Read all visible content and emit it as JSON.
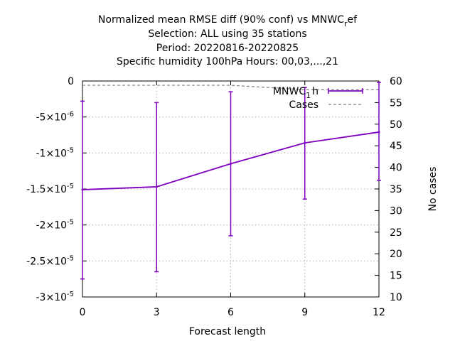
{
  "chart_data": {
    "type": "line",
    "title_lines": [
      "Normalized mean RMSE diff (90% conf) vs MNWC",
      "Selection: ALL using    35 stations",
      "Period: 20220816-20220825",
      "Specific humidity 100hPa   Hours:  00,03,...,21"
    ],
    "title_subscript": "r",
    "title_suffix": "ef",
    "xlabel": "Forecast length",
    "y2label": "No cases",
    "x": [
      0,
      3,
      6,
      9,
      12
    ],
    "xlim": [
      0,
      12
    ],
    "ylim": [
      -3e-05,
      0
    ],
    "y2lim": [
      10,
      60
    ],
    "x_ticks": [
      "0",
      "3",
      "6",
      "9",
      "12"
    ],
    "y_ticks": [
      {
        "value": 0,
        "base": "0",
        "exp": ""
      },
      {
        "value": -5e-06,
        "base": "-5×10",
        "exp": "-6"
      },
      {
        "value": -1e-05,
        "base": "-1×10",
        "exp": "-5"
      },
      {
        "value": -1.5e-05,
        "base": "-1.5×10",
        "exp": "-5"
      },
      {
        "value": -2e-05,
        "base": "-2×10",
        "exp": "-5"
      },
      {
        "value": -2.5e-05,
        "base": "-2.5×10",
        "exp": "-5"
      },
      {
        "value": -3e-05,
        "base": "-3×10",
        "exp": "-5"
      }
    ],
    "y2_ticks": [
      "10",
      "15",
      "20",
      "25",
      "30",
      "35",
      "40",
      "45",
      "50",
      "55",
      "60"
    ],
    "grid": true,
    "legend_position": "top-right",
    "series": [
      {
        "name": "MNWC_1h",
        "legend_base": "MNWC",
        "legend_sub": "1",
        "legend_suffix": "h",
        "axis": "y1",
        "color": "#7f00bf",
        "style": "solid with error bars",
        "values": [
          -1.51e-05,
          -1.47e-05,
          -1.15e-05,
          -8.6e-06,
          -7.1e-06
        ],
        "err_low": [
          -2.75e-05,
          -2.65e-05,
          -2.15e-05,
          -1.64e-05,
          -1.38e-05
        ],
        "err_high": [
          -2.8e-06,
          -3e-06,
          -1.5e-06,
          -9e-07,
          -2e-07
        ]
      },
      {
        "name": "Cases",
        "axis": "y2",
        "color": "#808080",
        "style": "dashed",
        "values": [
          59,
          59,
          59,
          58,
          58
        ]
      }
    ]
  }
}
